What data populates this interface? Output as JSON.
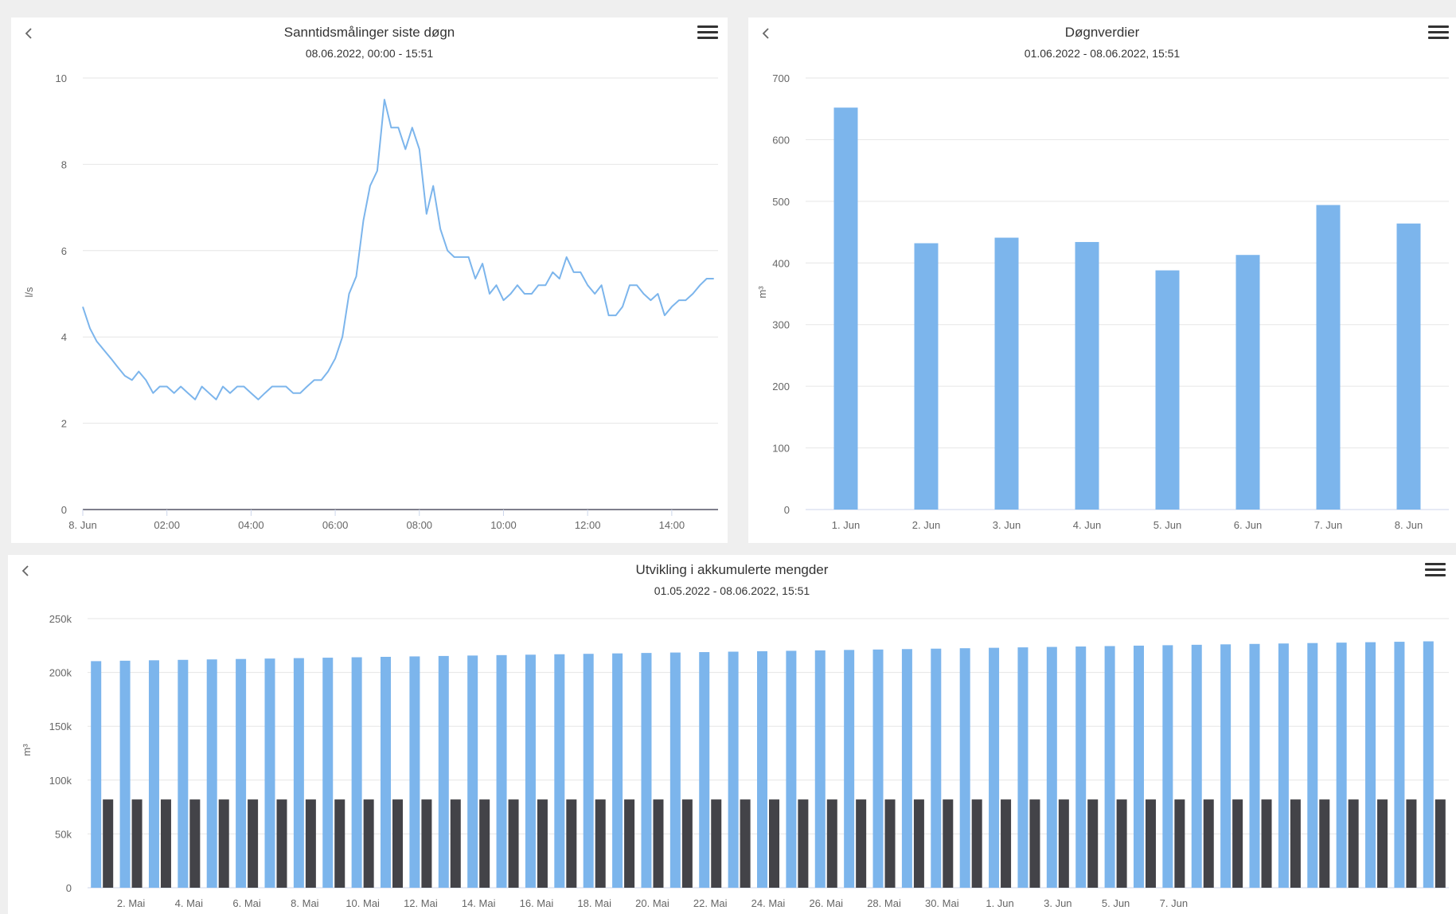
{
  "colors": {
    "primary": "#7cb5ec",
    "secondary": "#434348",
    "grid": "#e6e6e6",
    "axis": "#ccd6eb"
  },
  "icons": {
    "back": "chevron-left-icon",
    "menu": "hamburger-menu-icon"
  },
  "chart_data": [
    {
      "type": "line",
      "title": "Sanntidsmålinger siste døgn",
      "subtitle": "08.06.2022, 00:00 - 15:51",
      "ylabel": "l/s",
      "xlabel": "",
      "ylim": [
        0,
        10
      ],
      "xlim_hours": [
        0,
        15.1
      ],
      "yticks": [
        "0",
        "2",
        "4",
        "6",
        "8",
        "10"
      ],
      "xtick_labels": [
        "8. Jun",
        "02:00",
        "04:00",
        "06:00",
        "08:00",
        "10:00",
        "12:00",
        "14:00"
      ],
      "grid": true,
      "series": [
        {
          "x_hours": [
            0,
            0.17,
            0.33,
            0.5,
            0.67,
            0.83,
            1,
            1.17,
            1.33,
            1.5,
            1.67,
            1.83,
            2,
            2.17,
            2.33,
            2.5,
            2.67,
            2.83,
            3,
            3.17,
            3.33,
            3.5,
            3.67,
            3.83,
            4,
            4.17,
            4.33,
            4.5,
            4.67,
            4.83,
            5,
            5.17,
            5.33,
            5.5,
            5.67,
            5.83,
            6,
            6.17,
            6.33,
            6.5,
            6.67,
            6.83,
            7,
            7.17,
            7.33,
            7.5,
            7.67,
            7.83,
            8,
            8.17,
            8.33,
            8.5,
            8.67,
            8.83,
            9,
            9.17,
            9.33,
            9.5,
            9.67,
            9.83,
            10,
            10.17,
            10.33,
            10.5,
            10.67,
            10.83,
            11,
            11.17,
            11.33,
            11.5,
            11.67,
            11.83,
            12,
            12.17,
            12.33,
            12.5,
            12.67,
            12.83,
            13,
            13.17,
            13.33,
            13.5,
            13.67,
            13.83,
            14,
            14.17,
            14.33,
            14.5,
            14.67,
            14.83,
            15
          ],
          "values": [
            4.7,
            4.2,
            3.9,
            3.7,
            3.5,
            3.3,
            3.1,
            3.0,
            3.2,
            3.0,
            2.7,
            2.85,
            2.85,
            2.7,
            2.85,
            2.7,
            2.55,
            2.85,
            2.7,
            2.55,
            2.85,
            2.7,
            2.85,
            2.85,
            2.7,
            2.55,
            2.7,
            2.85,
            2.85,
            2.85,
            2.7,
            2.7,
            2.85,
            3.0,
            3.0,
            3.2,
            3.5,
            4.0,
            5.0,
            5.4,
            6.7,
            7.5,
            7.85,
            9.5,
            8.85,
            8.85,
            8.35,
            8.85,
            8.35,
            6.85,
            7.5,
            6.5,
            6.0,
            5.85,
            5.85,
            5.85,
            5.35,
            5.7,
            5.0,
            5.2,
            4.85,
            5.0,
            5.2,
            5.0,
            5.0,
            5.2,
            5.2,
            5.5,
            5.35,
            5.85,
            5.5,
            5.5,
            5.2,
            5.0,
            5.2,
            4.5,
            4.5,
            4.7,
            5.2,
            5.2,
            5.0,
            4.85,
            5.0,
            4.5,
            4.7,
            4.85,
            4.85,
            5.0,
            5.2,
            5.35,
            5.35
          ]
        }
      ]
    },
    {
      "type": "bar",
      "title": "Døgnverdier",
      "subtitle": "01.06.2022 - 08.06.2022, 15:51",
      "ylabel": "m³",
      "xlabel": "",
      "ylim": [
        0,
        700
      ],
      "yticks": [
        "0",
        "100",
        "200",
        "300",
        "400",
        "500",
        "600",
        "700"
      ],
      "categories": [
        "1. Jun",
        "2. Jun",
        "3. Jun",
        "4. Jun",
        "5. Jun",
        "6. Jun",
        "7. Jun",
        "8. Jun"
      ],
      "values": [
        652,
        432,
        441,
        434,
        388,
        413,
        494,
        464
      ],
      "grid": true
    },
    {
      "type": "bar",
      "title": "Utvikling i akkumulerte mengder",
      "subtitle": "01.05.2022 - 08.06.2022, 15:51",
      "ylabel": "m³",
      "xlabel": "",
      "ylim": [
        0,
        250000
      ],
      "yticks": [
        "0",
        "50k",
        "100k",
        "150k",
        "200k",
        "250k"
      ],
      "xtick_labels": [
        "2. Mai",
        "4. Mai",
        "6. Mai",
        "8. Mai",
        "10. Mai",
        "12. Mai",
        "14. Mai",
        "16. Mai",
        "18. Mai",
        "20. Mai",
        "22. Mai",
        "24. Mai",
        "26. Mai",
        "28. Mai",
        "30. Mai",
        "1. Jun",
        "3. Jun",
        "5. Jun",
        "7. Jun"
      ],
      "grid": true,
      "series": [
        {
          "values": [
            210500,
            210900,
            211300,
            211700,
            212100,
            212500,
            212900,
            213300,
            213700,
            214100,
            214500,
            214900,
            215300,
            215700,
            216100,
            216500,
            216900,
            217300,
            217700,
            218100,
            218500,
            218900,
            219300,
            219700,
            220100,
            220500,
            220900,
            221300,
            221700,
            222100,
            222500,
            222900,
            223300,
            223700,
            224100,
            224500,
            224900,
            225300,
            225700,
            226100,
            226500,
            226900,
            227300,
            227700,
            228100,
            228500,
            228900
          ]
        },
        {
          "values": [
            82000,
            82000,
            82000,
            82000,
            82000,
            82000,
            82000,
            82000,
            82000,
            82000,
            82000,
            82000,
            82000,
            82000,
            82000,
            82000,
            82000,
            82000,
            82000,
            82000,
            82000,
            82000,
            82000,
            82000,
            82000,
            82000,
            82000,
            82000,
            82000,
            82000,
            82000,
            82000,
            82000,
            82000,
            82000,
            82000,
            82000,
            82000,
            82000,
            82000,
            82000,
            82000,
            82000,
            82000,
            82000,
            82000,
            82000
          ]
        }
      ]
    }
  ]
}
